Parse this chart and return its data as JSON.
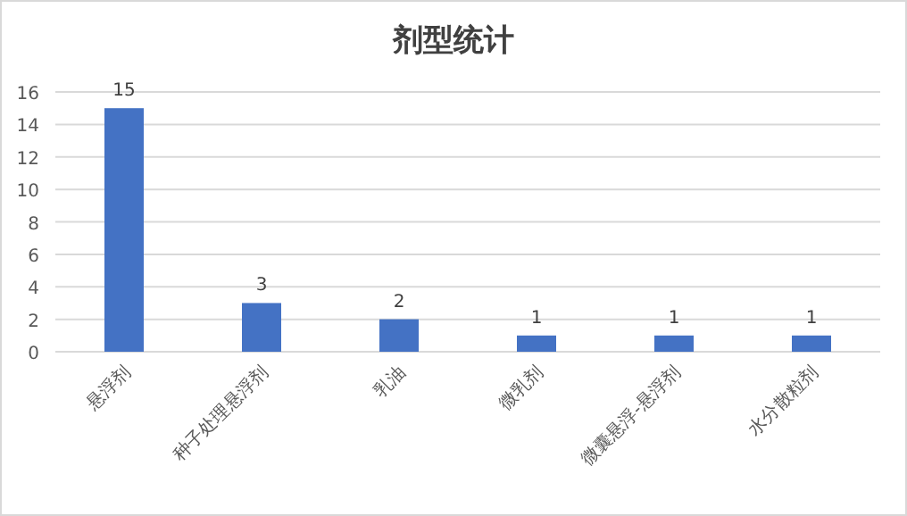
{
  "chart_data": {
    "type": "bar",
    "title": "剂型统计",
    "categories": [
      "悬浮剂",
      "种子处理悬浮剂",
      "乳油",
      "微乳剂",
      "微囊悬浮-悬浮剂",
      "水分散粒剂"
    ],
    "values": [
      15,
      3,
      2,
      1,
      1,
      1
    ],
    "color": "#4472c4",
    "ylim": [
      0,
      16
    ],
    "yticks": [
      0,
      2,
      4,
      6,
      8,
      10,
      12,
      14,
      16
    ],
    "grid": "y",
    "data_labels": true
  }
}
